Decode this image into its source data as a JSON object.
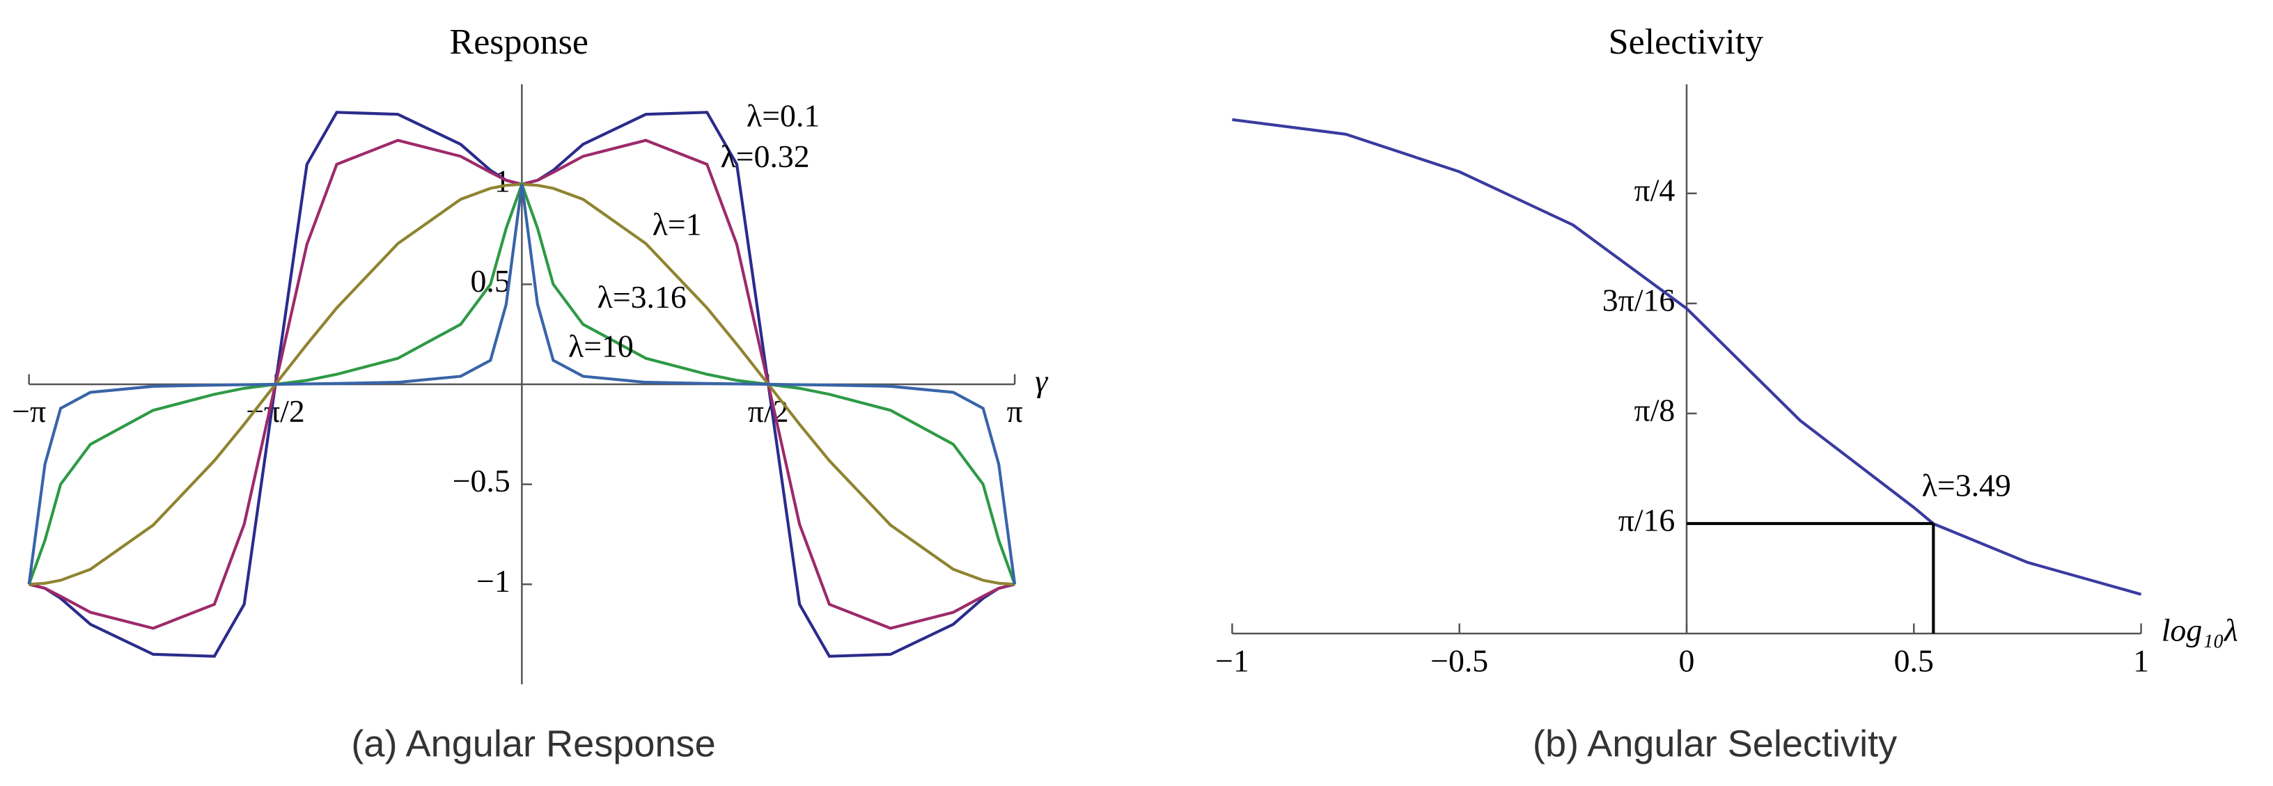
{
  "chart_data": [
    {
      "type": "line",
      "title": "Response",
      "caption": "(a) Angular Response",
      "xlabel": "γ",
      "x": [
        -3.1416,
        -3.04,
        -2.94,
        -2.75,
        -2.35,
        -1.96,
        -1.77,
        -1.5708,
        -1.37,
        -1.18,
        -0.79,
        -0.39,
        -0.2,
        -0.1,
        0,
        0.1,
        0.2,
        0.39,
        0.79,
        1.18,
        1.37,
        1.5708,
        1.77,
        1.96,
        2.35,
        2.75,
        2.94,
        3.04,
        3.1416
      ],
      "series": [
        {
          "name": "λ=0.1",
          "color": "#2b2b8c",
          "values": [
            -1,
            -1.02,
            -1.07,
            -1.2,
            -1.35,
            -1.36,
            -1.1,
            0,
            1.1,
            1.36,
            1.35,
            1.2,
            1.07,
            1.02,
            1,
            1.02,
            1.07,
            1.2,
            1.35,
            1.36,
            1.1,
            0,
            -1.1,
            -1.36,
            -1.35,
            -1.2,
            -1.07,
            -1.02,
            -1
          ]
        },
        {
          "name": "λ=0.32",
          "color": "#9c2a6a",
          "values": [
            -1,
            -1.02,
            -1.06,
            -1.14,
            -1.22,
            -1.1,
            -0.7,
            0,
            0.7,
            1.1,
            1.22,
            1.14,
            1.06,
            1.02,
            1,
            1.02,
            1.06,
            1.14,
            1.22,
            1.1,
            0.7,
            0,
            -0.7,
            -1.1,
            -1.22,
            -1.14,
            -1.06,
            -1.02,
            -1
          ]
        },
        {
          "name": "λ=1",
          "color": "#8f8430",
          "values": [
            -1,
            -0.995,
            -0.98,
            -0.925,
            -0.704,
            -0.382,
            -0.2,
            0,
            0.2,
            0.382,
            0.704,
            0.925,
            0.98,
            0.995,
            1,
            0.995,
            0.98,
            0.925,
            0.704,
            0.382,
            0.2,
            0,
            -0.2,
            -0.382,
            -0.704,
            -0.925,
            -0.98,
            -0.995,
            -1
          ]
        },
        {
          "name": "λ=3.16",
          "color": "#2e9a45",
          "values": [
            -1,
            -0.78,
            -0.5,
            -0.3,
            -0.13,
            -0.05,
            -0.02,
            0,
            0.02,
            0.05,
            0.13,
            0.3,
            0.5,
            0.78,
            1,
            0.78,
            0.5,
            0.3,
            0.13,
            0.05,
            0.02,
            0,
            -0.02,
            -0.05,
            -0.13,
            -0.3,
            -0.5,
            -0.78,
            -1
          ]
        },
        {
          "name": "λ=10",
          "color": "#3864a8",
          "values": [
            -1,
            -0.4,
            -0.12,
            -0.04,
            -0.01,
            -0.004,
            -0.002,
            0,
            0.002,
            0.004,
            0.01,
            0.04,
            0.12,
            0.4,
            1,
            0.4,
            0.12,
            0.04,
            0.01,
            0.004,
            0.002,
            0,
            -0.002,
            -0.004,
            -0.01,
            -0.04,
            -0.12,
            -0.4,
            -1
          ]
        }
      ],
      "xlim": [
        -3.1416,
        3.1416
      ],
      "ylim": [
        -1.5,
        1.5
      ],
      "xticks": [
        {
          "value": -3.1416,
          "label": "−π"
        },
        {
          "value": -1.5708,
          "label": "−π/2"
        },
        {
          "value": 1.5708,
          "label": "π/2"
        },
        {
          "value": 3.1416,
          "label": "π"
        }
      ],
      "yticks": [
        {
          "value": -1,
          "label": "−1"
        },
        {
          "value": -0.5,
          "label": "−0.5"
        },
        0.5,
        1
      ]
    },
    {
      "type": "line",
      "title": "Selectivity",
      "caption": "(b) Angular Selectivity",
      "xlabel": "log₁₀λ",
      "x": [
        -1,
        -0.75,
        -0.5,
        -0.25,
        0,
        0.25,
        0.5,
        0.543,
        0.75,
        1
      ],
      "series": [
        {
          "color": "#3a3aa0",
          "values": [
            0.917,
            0.891,
            0.824,
            0.729,
            0.58,
            0.38,
            0.225,
            0.196,
            0.127,
            0.07
          ]
        }
      ],
      "xlim": [
        -1,
        1
      ],
      "ylim": [
        0,
        0.98
      ],
      "xticks": [
        {
          "value": -1,
          "label": "−1"
        },
        {
          "value": -0.5,
          "label": "−0.5"
        },
        0,
        0.5,
        1
      ],
      "yticks": [
        {
          "value": 0.19635,
          "label": "π/16"
        },
        {
          "value": 0.392699,
          "label": "π/8"
        },
        {
          "value": 0.589049,
          "label": "3π/16"
        },
        {
          "value": 0.785398,
          "label": "π/4"
        }
      ],
      "annotations": [
        {
          "text": "λ=3.49",
          "x": 0.543,
          "y": 0.19635
        }
      ]
    }
  ]
}
